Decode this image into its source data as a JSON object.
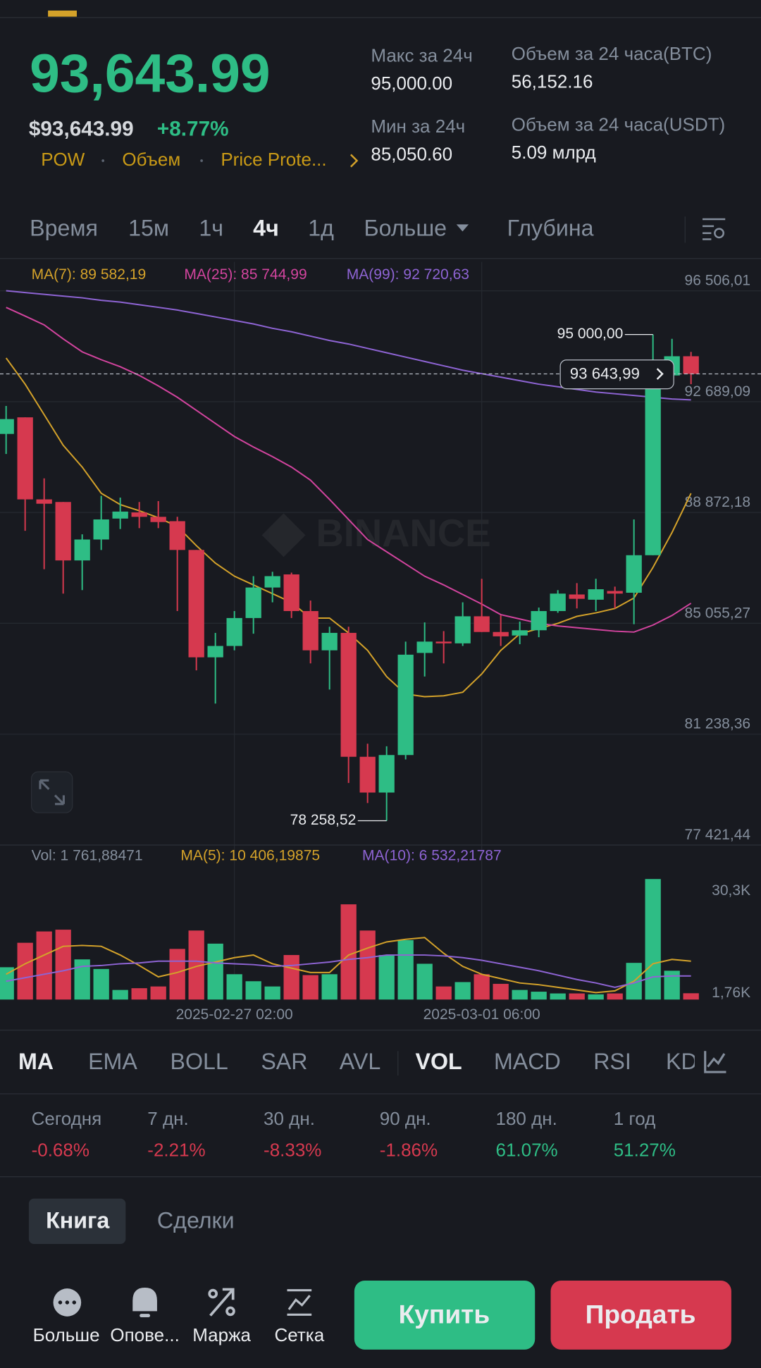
{
  "header": {
    "price": "93,643.99",
    "usd_price": "$93,643.99",
    "change": "+8.77%",
    "tags": [
      "POW",
      "Объем",
      "Price Prote..."
    ],
    "stats": [
      {
        "label": "Макс за 24ч",
        "value": "95,000.00"
      },
      {
        "label": "Мин за 24ч",
        "value": "85,050.60"
      },
      {
        "label": "Объем за 24 часа(BTC)",
        "value": "56,152.16"
      },
      {
        "label": "Объем за 24 часа(USDT)",
        "value": "5.09 млрд"
      }
    ]
  },
  "intervals": [
    "Время",
    "15м",
    "1ч",
    "4ч",
    "1д",
    "Больше",
    "Глубина"
  ],
  "chart_data": [
    {
      "type": "candlestick",
      "watermark": "BINANCE",
      "up_color": "#2ebd85",
      "down_color": "#d6394f",
      "grid": true,
      "categories": [
        null,
        null,
        null,
        null,
        null,
        null,
        null,
        null,
        null,
        null,
        null,
        null,
        "2025-02-27 02:00",
        null,
        null,
        null,
        null,
        null,
        null,
        null,
        null,
        null,
        null,
        null,
        null,
        "2025-03-01 06:00",
        null,
        null,
        null,
        null,
        null,
        null,
        null,
        null,
        null,
        null,
        null
      ],
      "open": [
        91578,
        92149,
        89324,
        89234,
        87221,
        87942,
        88663,
        88874,
        88723,
        88573,
        87582,
        83885,
        84276,
        85238,
        86289,
        86740,
        85478,
        84126,
        84727,
        80460,
        79228,
        80520,
        84036,
        84426,
        84366,
        85298,
        84757,
        84637,
        84817,
        85478,
        86049,
        85869,
        86169,
        86109,
        87401,
        93592,
        94253
      ],
      "high": [
        92540,
        92149,
        90046,
        89234,
        88122,
        89445,
        89385,
        89234,
        89264,
        88723,
        87582,
        84727,
        85478,
        86680,
        86830,
        86800,
        85839,
        84937,
        84937,
        80910,
        80820,
        84426,
        85087,
        84787,
        85779,
        86590,
        85328,
        85117,
        85598,
        86199,
        86440,
        86590,
        86319,
        88633,
        95000,
        94854,
        94403
      ],
      "low": [
        90887,
        88243,
        86920,
        86079,
        86199,
        87582,
        88303,
        88333,
        88333,
        85478,
        83435,
        82293,
        84126,
        84697,
        85779,
        85238,
        83675,
        82774,
        79558,
        78867,
        78258.52,
        80370,
        83224,
        83675,
        84276,
        84757,
        84276,
        84336,
        84577,
        85418,
        85568,
        85478,
        85568,
        85027,
        87401,
        93291,
        93291
      ],
      "close": [
        92089,
        89324,
        89174,
        87221,
        87942,
        88633,
        88904,
        88723,
        88543,
        87582,
        83885,
        84276,
        85238,
        86289,
        86680,
        85478,
        84126,
        84727,
        80460,
        79228,
        80520,
        83976,
        84426,
        84366,
        85298,
        84757,
        84607,
        84817,
        85478,
        86079,
        85899,
        86229,
        86079,
        87401,
        93592,
        94253,
        93643.99
      ],
      "series": [
        {
          "name": "MA(7): 89 582,19",
          "color": "#d4a22a",
          "values": [
            94192,
            93291,
            92239,
            91187,
            90435,
            89534,
            89143,
            88933,
            88692,
            88392,
            87731,
            87130,
            86679,
            86378,
            86078,
            85777,
            85236,
            85236,
            84725,
            84124,
            83223,
            82621,
            82531,
            82561,
            82682,
            83313,
            84124,
            84695,
            84876,
            85056,
            85296,
            85416,
            85567,
            85927,
            86979,
            88181,
            89534
          ]
        },
        {
          "name": "MA(25): 85 744,99",
          "color": "#d2449e",
          "values": [
            95935,
            95635,
            95334,
            94853,
            94403,
            94132,
            93892,
            93591,
            93231,
            92840,
            92389,
            91938,
            91487,
            91127,
            90796,
            90435,
            89985,
            89323,
            88632,
            87941,
            87520,
            87100,
            86679,
            86378,
            86048,
            85717,
            85356,
            85206,
            85056,
            84966,
            84906,
            84845,
            84785,
            84755,
            84996,
            85326,
            85747
          ]
        },
        {
          "name": "MA(99): 92 720,63",
          "color": "#8e64d4",
          "values": [
            96507,
            96446,
            96386,
            96326,
            96266,
            96176,
            96116,
            96026,
            95936,
            95845,
            95725,
            95605,
            95485,
            95365,
            95214,
            95094,
            94944,
            94794,
            94673,
            94523,
            94373,
            94223,
            94072,
            93922,
            93772,
            93652,
            93531,
            93411,
            93291,
            93201,
            93111,
            93021,
            92961,
            92901,
            92840,
            92780,
            92750
          ]
        }
      ],
      "ylim": [
        77360,
        97500
      ],
      "yticks": [
        {
          "value": 96506.01,
          "label": "96 506,01"
        },
        {
          "value": 92689.09,
          "label": "92 689,09"
        },
        {
          "value": 88872.18,
          "label": "88 872,18"
        },
        {
          "value": 85055.27,
          "label": "85 055,27"
        },
        {
          "value": 81238.36,
          "label": "81 238,36"
        },
        {
          "value": 77421.44,
          "label": "77 421,44"
        }
      ],
      "last_price": {
        "value": 93643.99,
        "label": "93 643,99"
      },
      "high_marker": {
        "value": 95000,
        "label": "95 000,00"
      },
      "low_marker": {
        "value": 78258.52,
        "label": "78 258,52"
      }
    },
    {
      "type": "bar",
      "label": "Vol: 1 761,88471",
      "values": [
        9030,
        15860,
        19030,
        19520,
        11220,
        8540,
        2680,
        3170,
        3660,
        14150,
        19280,
        15620,
        7080,
        5120,
        3660,
        12440,
        6830,
        7080,
        26600,
        19280,
        12440,
        16590,
        10000,
        3660,
        4880,
        7080,
        4390,
        2680,
        2200,
        1710,
        1710,
        1460,
        1710,
        10250,
        33670,
        8050,
        1761.88471
      ],
      "series": [
        {
          "name": "MA(5): 10 406,19875",
          "color": "#d4a22a",
          "values": [
            7076,
            10004,
            12444,
            14884,
            15128,
            14884,
            12444,
            9516,
            6344,
            7564,
            9272,
            10492,
            11712,
            12444,
            10004,
            8784,
            7564,
            7564,
            12444,
            14396,
            16104,
            16836,
            17324,
            12932,
            9272,
            7076,
            5856,
            4636,
            4148,
            3416,
            2684,
            1952,
            2440,
            5124,
            10004,
            11224,
            10736
          ]
        },
        {
          "name": "MA(10): 6 532,21787",
          "color": "#8e64d4",
          "values": [
            5124,
            6100,
            7076,
            8052,
            9272,
            9516,
            10004,
            10248,
            10736,
            10736,
            10736,
            10248,
            10004,
            9760,
            9272,
            9516,
            10004,
            10492,
            11224,
            11712,
            12444,
            12444,
            12444,
            12200,
            11712,
            10980,
            10004,
            9028,
            8052,
            6832,
            5612,
            4636,
            3416,
            4636,
            6344,
            6588,
            6588
          ]
        }
      ],
      "ylim": [
        0,
        35600
      ],
      "yticks": [
        {
          "value": 30300,
          "label": "30,3K"
        },
        {
          "value": 1760,
          "label": "1,76K"
        }
      ]
    }
  ],
  "indicators": [
    "MA",
    "EMA",
    "BOLL",
    "SAR",
    "AVL",
    "VOL",
    "MACD",
    "RSI",
    "KDJ"
  ],
  "performance": [
    {
      "label": "Сегодня",
      "value": "-0.68%"
    },
    {
      "label": "7 дн.",
      "value": "-2.21%"
    },
    {
      "label": "30 дн.",
      "value": "-8.33%"
    },
    {
      "label": "90 дн.",
      "value": "-1.86%"
    },
    {
      "label": "180 дн.",
      "value": "61.07%"
    },
    {
      "label": "1 год",
      "value": "51.27%"
    }
  ],
  "book_tabs": [
    "Книга",
    "Сделки"
  ],
  "bottom_bar": {
    "actions": [
      "Больше",
      "Опове...",
      "Маржа",
      "Сетка"
    ],
    "buy": "Купить",
    "sell": "Продать"
  }
}
